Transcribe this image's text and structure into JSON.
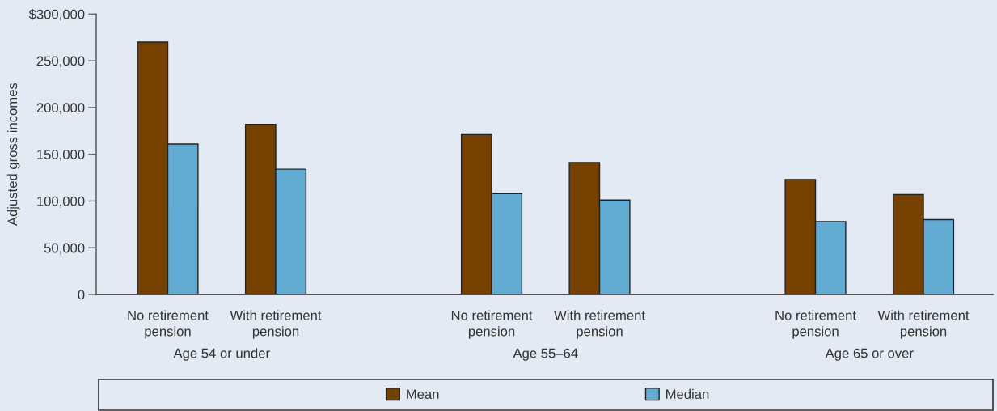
{
  "chart_data": {
    "type": "bar",
    "ylabel": "Adjusted gross incomes",
    "categories": [
      "No retirement\npension",
      "With retirement\npension",
      null,
      "No retirement\npension",
      "With retirement\npension",
      null,
      "No retirement\npension",
      "With retirement\npension"
    ],
    "series": [
      {
        "name": "Mean",
        "color": "#764000",
        "values": [
          270000,
          182000,
          null,
          171000,
          141000,
          null,
          123000,
          107000
        ]
      },
      {
        "name": "Median",
        "color": "#62acd4",
        "values": [
          161000,
          134000,
          null,
          108000,
          101000,
          null,
          78000,
          80000
        ]
      }
    ],
    "annotations": [
      "Age 54 or under",
      "Age 55–64",
      "Age 65 or over"
    ],
    "ylim": [
      0,
      300000
    ],
    "yticks": [
      {
        "value": 0,
        "label": "0"
      },
      {
        "value": 50000,
        "label": "50,000"
      },
      {
        "value": 100000,
        "label": "100,000"
      },
      {
        "value": 150000,
        "label": "150,000"
      },
      {
        "value": 200000,
        "label": "200,000"
      },
      {
        "value": 250000,
        "label": "250,000"
      },
      {
        "value": 300000,
        "label": "$300,000"
      }
    ],
    "legend": "bottom"
  }
}
